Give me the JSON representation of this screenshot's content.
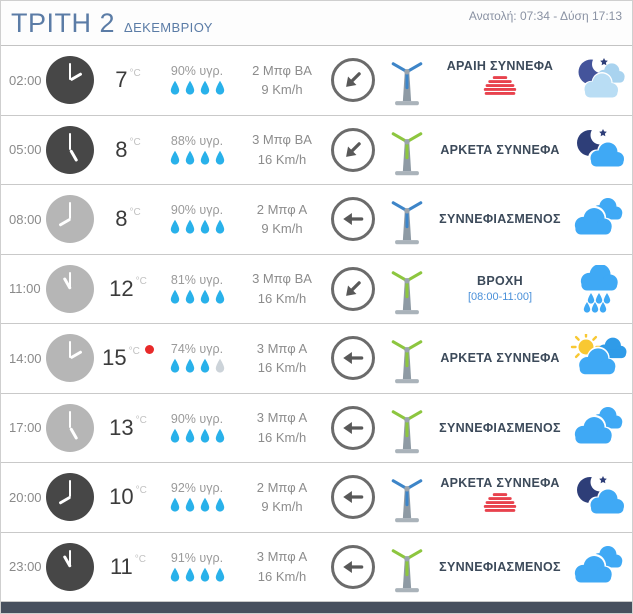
{
  "header": {
    "day_title": "ΤΡΙΤΗ 2",
    "month": "ΔΕΚΕΜΒΡΙΟΥ",
    "sun_info": "Ανατολή: 07:34 - Δύση 17:13"
  },
  "colors": {
    "accent_blue": "#3fa9f5",
    "cloud_dark_blue": "#2f9be8",
    "drop_blue": "#29b1ea",
    "drop_empty": "#ccd3d9",
    "turbine_blue": "#3d85c8",
    "turbine_green": "#8dc63f",
    "turbine_tower": "#8e9aa4",
    "night_clock": "#474747",
    "day_clock": "#b6b6b6",
    "condition_text": "#3c4a5a",
    "note_blue": "#4a90d9",
    "fog_red": "#e8424d",
    "max_dot_red": "#e82a2a",
    "title_blue": "#5b7ca6",
    "bottom_bar": "#47505e",
    "sun_yellow": "#f8c832",
    "moon_navy": "#2e3e78",
    "moon_light_navy": "#44549b",
    "pale_cloud": "#b9ddf4",
    "pale_cloud_back": "#a9d3ef"
  },
  "rows": [
    {
      "time": "02:00",
      "period": "night",
      "temp": "7",
      "temp_unit": "°C",
      "is_max": false,
      "humidity": "90% υγρ.",
      "drops_filled": 4,
      "drops_total": 4,
      "wind_beaufort": "2 Μπφ ΒΑ",
      "wind_speed": "9 Km/h",
      "wind_dir": "ΒΑ",
      "turbine": "blue",
      "condition": "ΑΡΑΙΗ ΣΥΝΝΕΦΑ",
      "condition_note": "",
      "fog": true,
      "icon": "moon-few-clouds"
    },
    {
      "time": "05:00",
      "period": "night",
      "temp": "8",
      "temp_unit": "°C",
      "is_max": false,
      "humidity": "88% υγρ.",
      "drops_filled": 4,
      "drops_total": 4,
      "wind_beaufort": "3 Μπφ ΒΑ",
      "wind_speed": "16 Km/h",
      "wind_dir": "ΒΑ",
      "turbine": "green",
      "condition": "ΑΡΚΕΤΑ ΣΥΝΝΕΦΑ",
      "condition_note": "",
      "fog": false,
      "icon": "moon-clouds"
    },
    {
      "time": "08:00",
      "period": "day",
      "temp": "8",
      "temp_unit": "°C",
      "is_max": false,
      "humidity": "90% υγρ.",
      "drops_filled": 4,
      "drops_total": 4,
      "wind_beaufort": "2 Μπφ Α",
      "wind_speed": "9 Km/h",
      "wind_dir": "Α",
      "turbine": "blue",
      "condition": "ΣΥΝΝΕΦΙΑΣΜΕΝΟΣ",
      "condition_note": "",
      "fog": false,
      "icon": "clouds"
    },
    {
      "time": "11:00",
      "period": "day",
      "temp": "12",
      "temp_unit": "°C",
      "is_max": false,
      "humidity": "81% υγρ.",
      "drops_filled": 4,
      "drops_total": 4,
      "wind_beaufort": "3 Μπφ ΒΑ",
      "wind_speed": "16 Km/h",
      "wind_dir": "ΒΑ",
      "turbine": "green",
      "condition": "ΒΡΟΧΗ",
      "condition_note": "[08:00-11:00]",
      "fog": false,
      "icon": "rain"
    },
    {
      "time": "14:00",
      "period": "day",
      "temp": "15",
      "temp_unit": "°C",
      "is_max": true,
      "humidity": "74% υγρ.",
      "drops_filled": 3,
      "drops_total": 4,
      "wind_beaufort": "3 Μπφ Α",
      "wind_speed": "16 Km/h",
      "wind_dir": "Α",
      "turbine": "green",
      "condition": "ΑΡΚΕΤΑ ΣΥΝΝΕΦΑ",
      "condition_note": "",
      "fog": false,
      "icon": "sun-clouds"
    },
    {
      "time": "17:00",
      "period": "day",
      "temp": "13",
      "temp_unit": "°C",
      "is_max": false,
      "humidity": "90% υγρ.",
      "drops_filled": 4,
      "drops_total": 4,
      "wind_beaufort": "3 Μπφ Α",
      "wind_speed": "16 Km/h",
      "wind_dir": "Α",
      "turbine": "green",
      "condition": "ΣΥΝΝΕΦΙΑΣΜΕΝΟΣ",
      "condition_note": "",
      "fog": false,
      "icon": "clouds"
    },
    {
      "time": "20:00",
      "period": "night",
      "temp": "10",
      "temp_unit": "°C",
      "is_max": false,
      "humidity": "92% υγρ.",
      "drops_filled": 4,
      "drops_total": 4,
      "wind_beaufort": "2 Μπφ Α",
      "wind_speed": "9 Km/h",
      "wind_dir": "Α",
      "turbine": "blue",
      "condition": "ΑΡΚΕΤΑ ΣΥΝΝΕΦΑ",
      "condition_note": "",
      "fog": true,
      "icon": "moon-clouds"
    },
    {
      "time": "23:00",
      "period": "night",
      "temp": "11",
      "temp_unit": "°C",
      "is_max": false,
      "humidity": "91% υγρ.",
      "drops_filled": 4,
      "drops_total": 4,
      "wind_beaufort": "3 Μπφ Α",
      "wind_speed": "16 Km/h",
      "wind_dir": "Α",
      "turbine": "green",
      "condition": "ΣΥΝΝΕΦΙΑΣΜΕΝΟΣ",
      "condition_note": "",
      "fog": false,
      "icon": "clouds"
    }
  ]
}
